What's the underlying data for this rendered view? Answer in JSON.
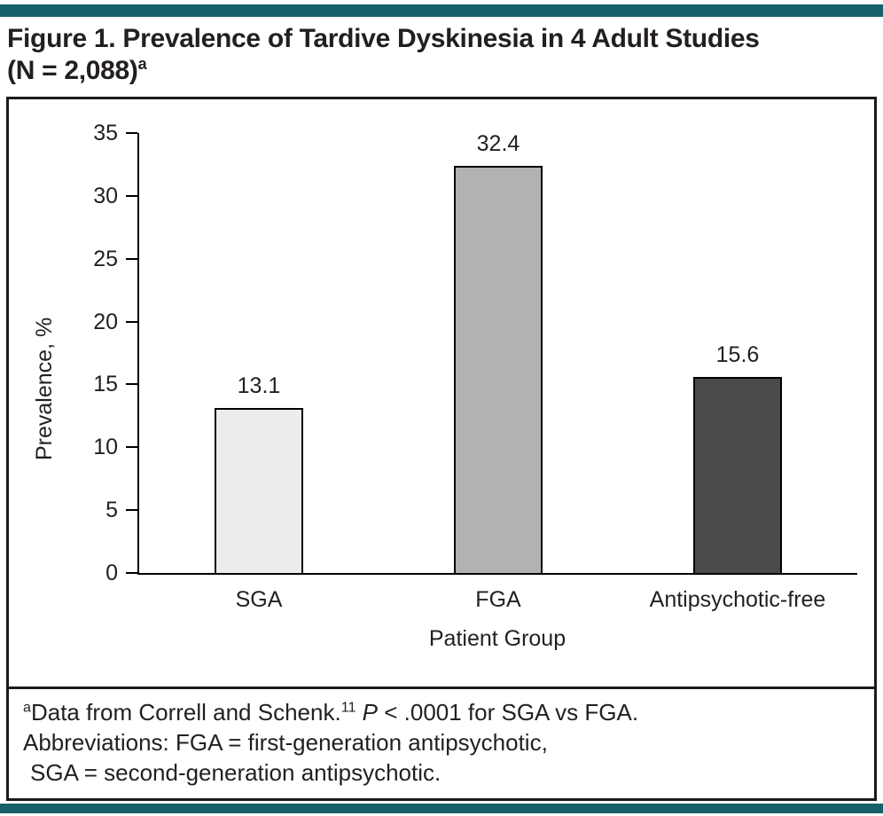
{
  "accent_color": "#17606b",
  "figure": {
    "title_line1": "Figure 1. Prevalence of Tardive Dyskinesia in 4 Adult Studies",
    "title_line2": "(N = 2,088)",
    "title_sup": "a"
  },
  "footnote": {
    "marker": "a",
    "line1_text": "Data from Correll and Schenk.",
    "line1_ref": "11",
    "p_label": "P",
    "line1_rest": " < .0001 for SGA vs FGA.",
    "line2": "Abbreviations: FGA = first-generation antipsychotic,",
    "line3": "SGA = second-generation antipsychotic."
  },
  "chart_data": {
    "type": "bar",
    "title": "Prevalence of Tardive Dyskinesia in 4 Adult Studies (N = 2,088)",
    "categories": [
      "SGA",
      "FGA",
      "Antipsychotic-free"
    ],
    "values": [
      13.1,
      32.4,
      15.6
    ],
    "value_labels": [
      "13.1",
      "32.4",
      "15.6"
    ],
    "bar_colors": [
      "#ececec",
      "#b2b2b2",
      "#4a4a4a"
    ],
    "bar_outline": "#000000",
    "xlabel": "Patient Group",
    "ylabel": "Prevalence, %",
    "ylim": [
      0,
      35
    ],
    "yticks": [
      0,
      5,
      10,
      15,
      20,
      25,
      30,
      35
    ],
    "grid": false,
    "legend": "none"
  }
}
